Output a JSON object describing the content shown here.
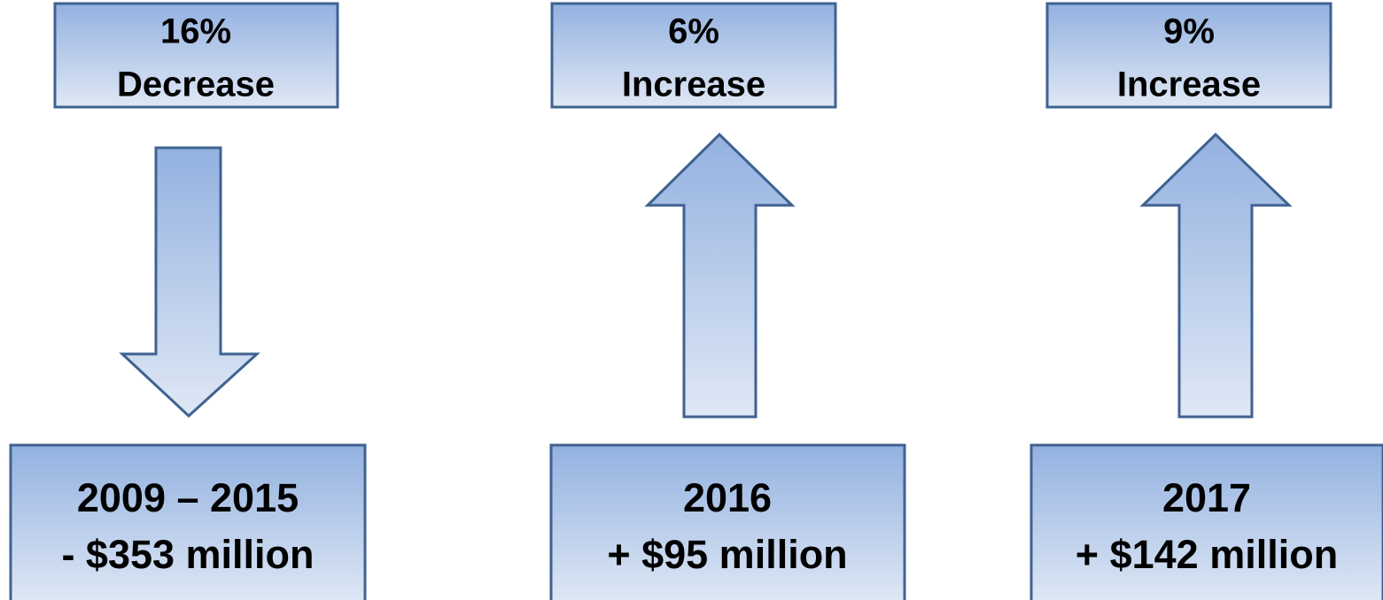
{
  "columns": [
    {
      "top": {
        "lines": [
          "16%",
          "Decrease"
        ]
      },
      "bottom": {
        "lines": [
          "2009 – 2015",
          "- $353 million"
        ]
      }
    },
    {
      "top": {
        "lines": [
          "6%",
          "Increase"
        ]
      },
      "bottom": {
        "lines": [
          "2016",
          "+ $95 million"
        ]
      }
    },
    {
      "top": {
        "lines": [
          "9%",
          "Increase"
        ]
      },
      "bottom": {
        "lines": [
          "2017",
          "+ $142 million"
        ]
      }
    }
  ]
}
